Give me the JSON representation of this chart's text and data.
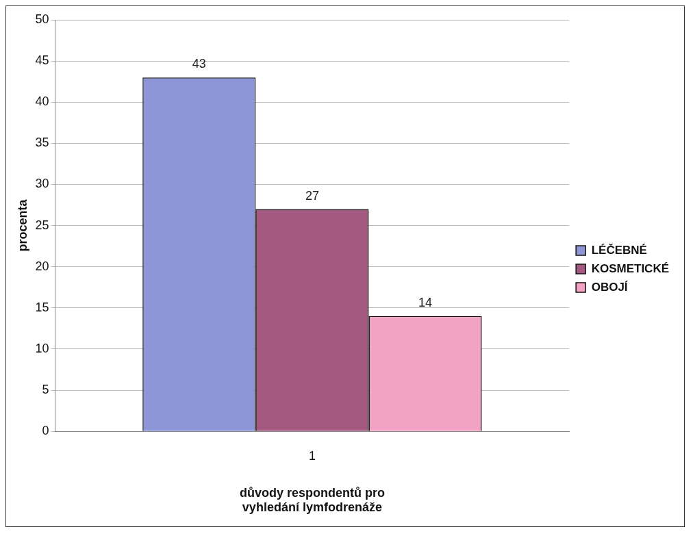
{
  "chart_data": {
    "type": "bar",
    "categories": [
      "1"
    ],
    "xlabel": "důvody respondentů pro vyhledání lymfodrenáže",
    "ylabel": "procenta",
    "series": [
      {
        "name": "LÉČEBNÉ",
        "color": "#8e96d8",
        "values": [
          43
        ]
      },
      {
        "name": "KOSMETICKÉ",
        "color": "#a45a80",
        "values": [
          27
        ]
      },
      {
        "name": "OBOJÍ",
        "color": "#f2a2c4",
        "values": [
          14
        ]
      }
    ],
    "ylim": [
      0,
      50
    ],
    "yticks": [
      0,
      5,
      10,
      15,
      20,
      25,
      30,
      35,
      40,
      45,
      50
    ],
    "grid": "y",
    "legend": "right",
    "data_labels": true
  }
}
